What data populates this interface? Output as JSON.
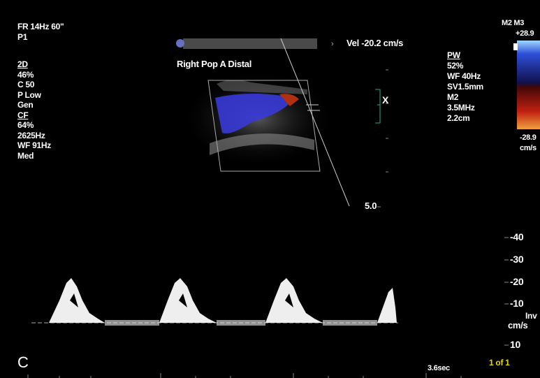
{
  "left_panel": {
    "frame_rate": "FR 14Hz 60\"",
    "preset": "P1",
    "params": [
      "2D",
      "46%",
      "C 50",
      "P Low",
      "Gen",
      "CF",
      "64%",
      "2625Hz",
      "WF 91Hz",
      "Med"
    ]
  },
  "top": {
    "velocity": "Vel -20.2 cm/s",
    "location": "Right Pop A Distal"
  },
  "right_panel": {
    "params": [
      "PW",
      "52%",
      "WF 40Hz",
      "SV1.5mm",
      "M2",
      "3.5MHz",
      "2.2cm"
    ]
  },
  "color_bar": {
    "mode": "M2 M3",
    "max": "+28.9",
    "min": "-28.9",
    "unit": "cm/s"
  },
  "image": {
    "gate": "X",
    "depth": "5.0"
  },
  "spectral": {
    "scale": [
      "-40",
      "-30",
      "-20",
      "-10",
      "10"
    ],
    "invert": "Inv",
    "unit": "cm/s",
    "mode": "C",
    "sweep": "3.6sec",
    "frame": "1 of 1"
  }
}
